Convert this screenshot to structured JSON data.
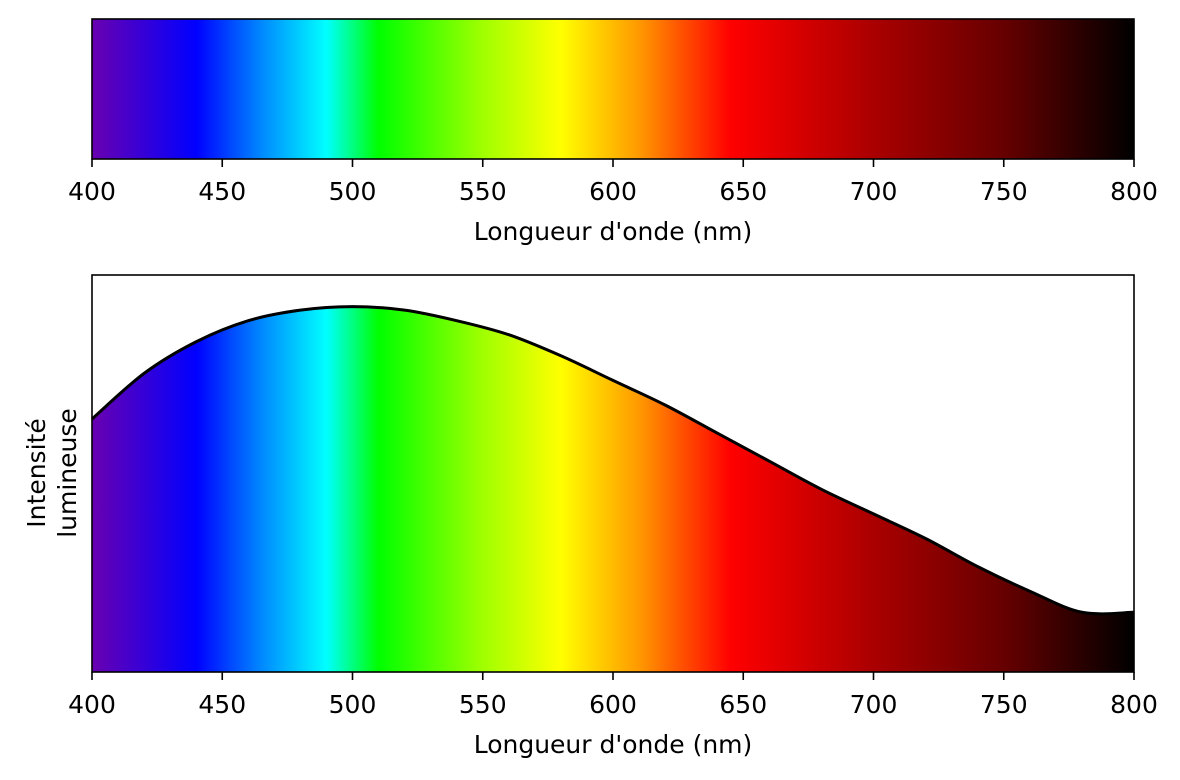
{
  "chart_data": [
    {
      "type": "heatmap",
      "description_role": "spectrum-bar",
      "xlabel": "Longueur d'onde (nm)",
      "ylabel": "",
      "xlim": [
        400,
        800
      ],
      "x_ticks": [
        400,
        450,
        500,
        550,
        600,
        650,
        700,
        750,
        800
      ],
      "y_ticks_shown": false,
      "color_stops": [
        {
          "wavelength": 400,
          "color": "#6a00b0"
        },
        {
          "wavelength": 440,
          "color": "#0000ff"
        },
        {
          "wavelength": 465,
          "color": "#0088ff"
        },
        {
          "wavelength": 490,
          "color": "#00ffff"
        },
        {
          "wavelength": 510,
          "color": "#00ff00"
        },
        {
          "wavelength": 550,
          "color": "#a0ff00"
        },
        {
          "wavelength": 580,
          "color": "#ffff00"
        },
        {
          "wavelength": 610,
          "color": "#ff9900"
        },
        {
          "wavelength": 645,
          "color": "#ff0000"
        },
        {
          "wavelength": 700,
          "color": "#aa0000"
        },
        {
          "wavelength": 750,
          "color": "#660000"
        },
        {
          "wavelength": 800,
          "color": "#000000"
        }
      ]
    },
    {
      "type": "area",
      "xlabel": "Longueur d'onde (nm)",
      "ylabel_lines": [
        "Intensité",
        "lumineuse"
      ],
      "xlim": [
        400,
        800
      ],
      "ylim": [
        0,
        1.13
      ],
      "y_ticks_shown": false,
      "x_ticks": [
        400,
        450,
        500,
        550,
        600,
        650,
        700,
        750,
        800
      ],
      "fill": "spectrum-gradient",
      "line_color": "#000000",
      "series": [
        {
          "x": [
            400,
            420,
            440,
            460,
            480,
            500,
            520,
            540,
            560,
            580,
            600,
            620,
            640,
            660,
            680,
            700,
            720,
            740,
            760,
            780,
            800
          ],
          "y": [
            0.72,
            0.85,
            0.94,
            1.0,
            1.03,
            1.04,
            1.03,
            1.0,
            0.96,
            0.9,
            0.83,
            0.76,
            0.68,
            0.6,
            0.52,
            0.45,
            0.38,
            0.3,
            0.23,
            0.17,
            0.17
          ]
        }
      ]
    }
  ]
}
